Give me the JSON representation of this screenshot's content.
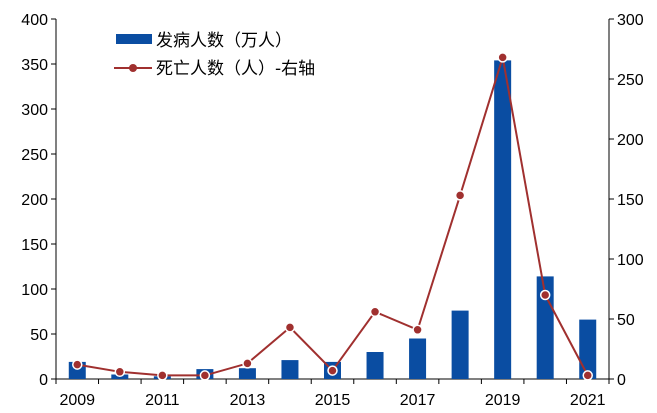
{
  "chart_data": {
    "type": "bar+line",
    "categories": [
      "2009",
      "2010",
      "2011",
      "2012",
      "2013",
      "2014",
      "2015",
      "2016",
      "2017",
      "2018",
      "2019",
      "2020",
      "2021"
    ],
    "x_tick_labels": [
      "2009",
      "2011",
      "2013",
      "2015",
      "2017",
      "2019",
      "2021"
    ],
    "series": [
      {
        "name": "发病人数（万人）",
        "type": "bar",
        "axis": "left",
        "color": "#0A4DA2",
        "values": [
          19,
          5,
          3,
          11,
          12,
          21,
          19,
          30,
          45,
          76,
          354,
          114,
          66
        ]
      },
      {
        "name": "死亡人数（人）-右轴",
        "type": "line",
        "axis": "right",
        "color": "#A0302F",
        "values": [
          12,
          6,
          3,
          3,
          13,
          43,
          7,
          56,
          41,
          153,
          268,
          70,
          3
        ]
      }
    ],
    "y_left": {
      "min": 0,
      "max": 400,
      "ticks": [
        "0",
        "50",
        "100",
        "150",
        "200",
        "250",
        "300",
        "350",
        "400"
      ]
    },
    "y_right": {
      "min": 0,
      "max": 300,
      "ticks": [
        "0",
        "50",
        "100",
        "150",
        "200",
        "250",
        "300"
      ]
    },
    "legend_position": "top-left",
    "grid": false
  }
}
